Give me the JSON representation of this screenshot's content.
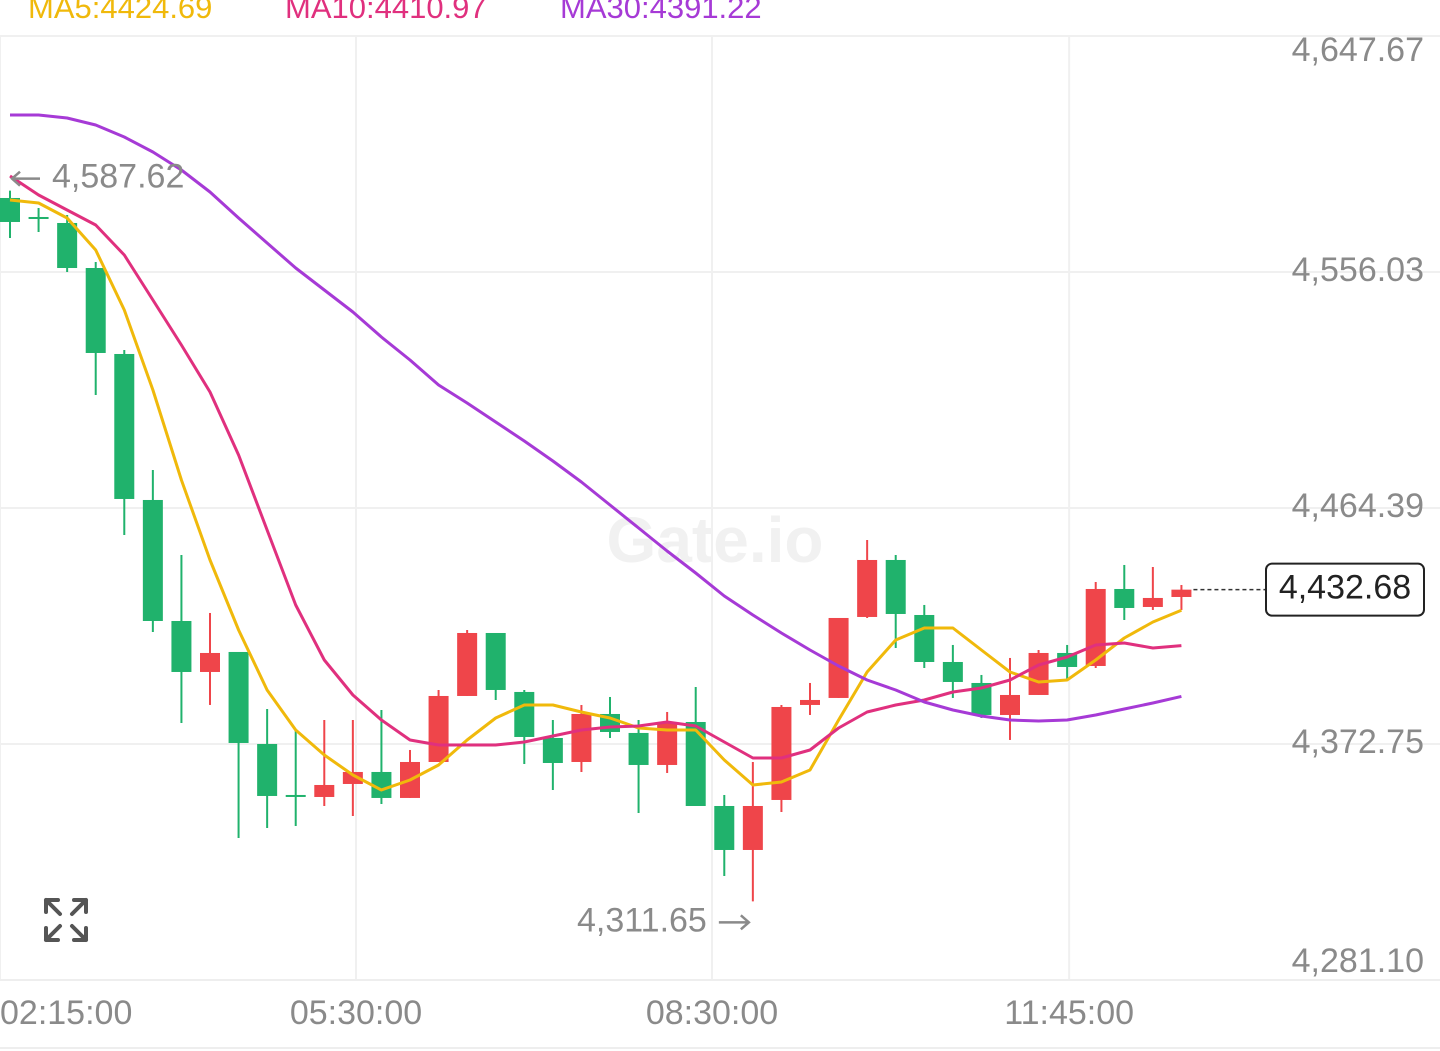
{
  "chart_data": {
    "type": "candlestick",
    "watermark": "Gate.io",
    "up_color": "#ef454a",
    "down_color": "#20b26c",
    "open": [
      4584.77,
      4577.39,
      4575.06,
      4557.58,
      4524.19,
      4467.5,
      4420.51,
      4400.71,
      4408.48,
      4372.75,
      4352.95,
      4352.17,
      4357.22,
      4361.88,
      4351.79,
      4365.76,
      4391.39,
      4415.85,
      4392.95,
      4375.08,
      4365.76,
      4384.4,
      4377.03,
      4364.6,
      4381.29,
      4348.67,
      4331.59,
      4351.01,
      4387.9,
      4390.62,
      4422.07,
      4444.2,
      4422.84,
      4404.59,
      4396.44,
      4384.01,
      4391.78,
      4408.09,
      4403.04,
      4432.94,
      4425.95,
      4429.83
    ],
    "high": [
      4587.62,
      4580.88,
      4578.16,
      4559.91,
      4525.74,
      4479.15,
      4446.14,
      4423.62,
      4408.48,
      4386.34,
      4378.19,
      4382.07,
      4382.07,
      4385.96,
      4370.42,
      4393.72,
      4417.02,
      4415.85,
      4393.72,
      4382.07,
      4387.9,
      4391.0,
      4382.07,
      4385.18,
      4394.89,
      4352.95,
      4365.76,
      4387.9,
      4396.44,
      4421.68,
      4451.97,
      4446.14,
      4426.73,
      4411.2,
      4399.55,
      4406.15,
      4409.25,
      4411.2,
      4435.66,
      4442.26,
      4441.48,
      4434.49
    ],
    "low": [
      4569.23,
      4571.56,
      4556.03,
      4508.27,
      4453.91,
      4416.24,
      4380.91,
      4387.9,
      4336.25,
      4340.14,
      4340.91,
      4348.67,
      4344.8,
      4349.46,
      4351.79,
      4365.76,
      4391.39,
      4389.84,
      4364.99,
      4354.89,
      4361.88,
      4375.08,
      4345.96,
      4361.49,
      4348.67,
      4321.5,
      4311.65,
      4346.35,
      4384.01,
      4390.62,
      4421.68,
      4410.03,
      4402.26,
      4390.62,
      4382.85,
      4374.31,
      4391.78,
      4397.6,
      4402.26,
      4420.9,
      4424.79,
      4424.79
    ],
    "close": [
      4575.45,
      4577.0,
      4557.58,
      4524.58,
      4467.89,
      4420.51,
      4400.71,
      4408.09,
      4373.14,
      4352.56,
      4352.56,
      4356.83,
      4361.88,
      4351.79,
      4365.76,
      4391.39,
      4415.85,
      4393.72,
      4375.47,
      4365.37,
      4384.4,
      4377.41,
      4364.6,
      4381.29,
      4348.67,
      4331.59,
      4348.67,
      4387.12,
      4389.84,
      4421.68,
      4444.2,
      4423.23,
      4404.59,
      4396.83,
      4384.01,
      4391.78,
      4408.09,
      4402.65,
      4432.94,
      4425.56,
      4429.45,
      4432.68
    ],
    "ma_series": [
      {
        "name": "MA5:4424.69",
        "color": "#f0b90b",
        "values": [
          4583.99,
          4582.82,
          4577.0,
          4564.57,
          4541.28,
          4510.21,
          4475.26,
          4444.2,
          4417.02,
          4393.72,
          4378.19,
          4368.48,
          4360.71,
          4354.89,
          4358.77,
          4364.6,
          4374.31,
          4382.85,
          4387.9,
          4387.9,
          4385.18,
          4382.85,
          4378.97,
          4378.19,
          4378.19,
          4366.54,
          4356.83,
          4358.0,
          4362.66,
          4382.07,
          4400.71,
          4413.14,
          4417.8,
          4417.8,
          4409.25,
          4400.71,
          4396.83,
          4397.6,
          4405.37,
          4413.91,
          4420.12,
          4424.69
        ]
      },
      {
        "name": "MA10:4410.97",
        "color": "#e0307e",
        "values": [
          4593.31,
          4585.93,
          4580.11,
          4574.28,
          4562.63,
          4545.16,
          4527.69,
          4509.44,
          4484.97,
          4455.85,
          4426.73,
          4405.37,
          4391.78,
          4382.07,
          4374.31,
          4372.36,
          4372.36,
          4372.36,
          4373.53,
          4375.86,
          4378.19,
          4379.36,
          4379.74,
          4381.29,
          4379.74,
          4373.53,
          4367.32,
          4367.32,
          4370.42,
          4378.97,
          4385.18,
          4387.9,
          4389.84,
          4392.95,
          4394.5,
          4397.6,
          4403.43,
          4406.54,
          4411.2,
          4411.97,
          4410.03,
          4410.97
        ]
      },
      {
        "name": "MA30:4391.22",
        "color": "#a63ad6",
        "values": [
          4616.99,
          4616.99,
          4615.83,
          4613.11,
          4608.45,
          4602.63,
          4595.64,
          4587.1,
          4577.0,
          4567.29,
          4557.58,
          4549.04,
          4540.5,
          4530.79,
          4521.86,
          4512.15,
          4505.16,
          4497.79,
          4490.41,
          4482.64,
          4474.49,
          4465.56,
          4456.63,
          4447.7,
          4439.15,
          4430.22,
          4422.84,
          4415.85,
          4409.25,
          4403.04,
          4397.6,
          4393.72,
          4389.06,
          4385.96,
          4383.63,
          4382.07,
          4381.68,
          4382.07,
          4384.01,
          4386.34,
          4388.67,
          4391.22
        ]
      }
    ],
    "max_label": {
      "value": 4587.62,
      "label": "4,587.62"
    },
    "min_label": {
      "value": 4311.65,
      "label": "4,311.65"
    },
    "last_price": {
      "value": 4432.68,
      "label": "4,432.68"
    },
    "xlim": [
      -0.35,
      50.05
    ],
    "xticks": [
      {
        "value": -0.35,
        "label": "02:15:00"
      },
      {
        "value": 12.11,
        "label": "05:30:00"
      },
      {
        "value": 24.57,
        "label": "08:30:00"
      },
      {
        "value": 37.07,
        "label": "11:45:00"
      }
    ],
    "ylim": [
      4281.1,
      4647.67
    ],
    "yticks": [
      {
        "value": 4281.1,
        "label": "4,281.10"
      },
      {
        "value": 4372.75,
        "label": "4,372.75"
      },
      {
        "value": 4464.39,
        "label": "4,464.39"
      },
      {
        "value": 4556.03,
        "label": "4,556.03"
      },
      {
        "value": 4647.67,
        "label": "4,647.67"
      }
    ],
    "grid": true
  }
}
